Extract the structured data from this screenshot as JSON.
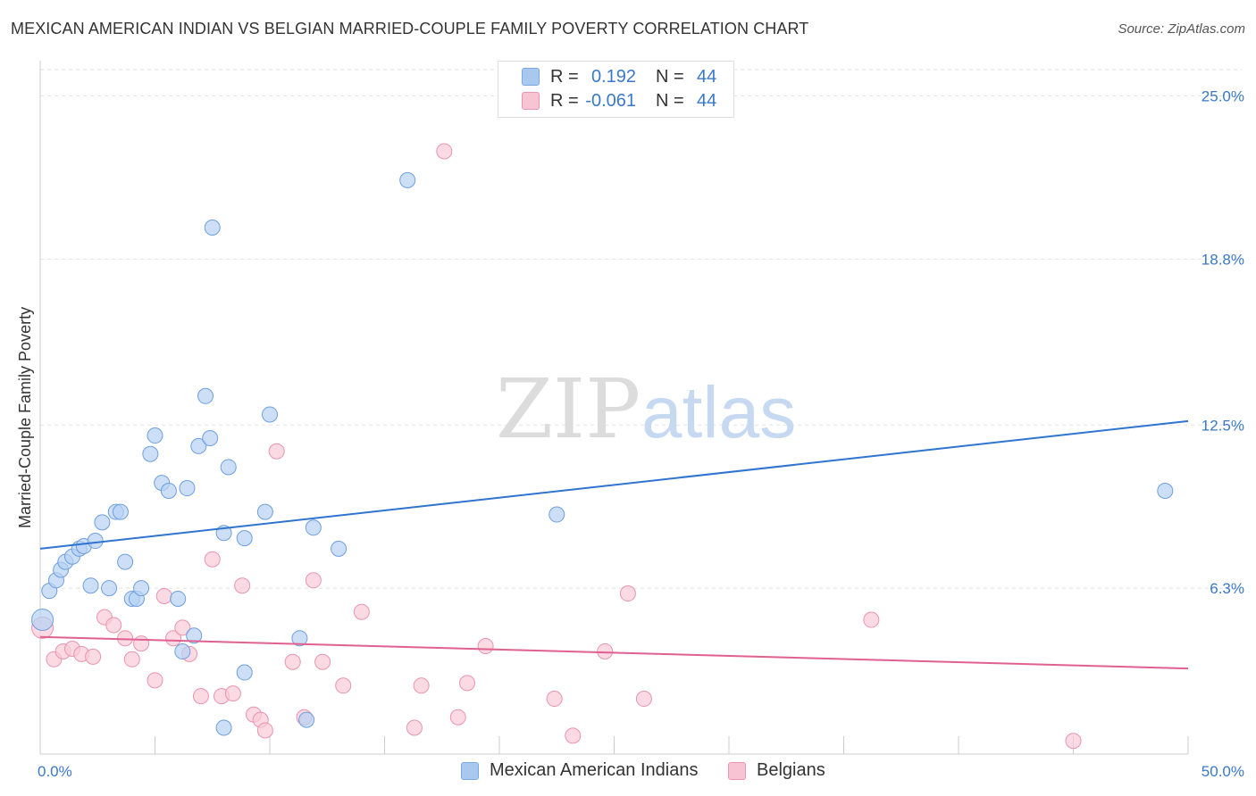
{
  "title": "MEXICAN AMERICAN INDIAN VS BELGIAN MARRIED-COUPLE FAMILY POVERTY CORRELATION CHART",
  "source": "Source: ZipAtlas.com",
  "watermark": {
    "zip": "ZIP",
    "atlas": "atlas"
  },
  "legend": {
    "rows": [
      {
        "r_label": "R =",
        "r_value": "0.192",
        "n_label": "N =",
        "n_value": "44",
        "color": "#a9c8f0",
        "border": "#7aa7e0"
      },
      {
        "r_label": "R =",
        "r_value": "-0.061",
        "n_label": "N =",
        "n_value": "44",
        "color": "#f8c3d3",
        "border": "#e994b0"
      }
    ]
  },
  "bottom_legend": {
    "items": [
      {
        "label": "Mexican American Indians",
        "color": "#a9c8f0",
        "border": "#7aa7e0"
      },
      {
        "label": "Belgians",
        "color": "#f8c3d3",
        "border": "#e994b0"
      }
    ]
  },
  "chart_data": {
    "type": "scatter",
    "xlabel": "",
    "ylabel": "Married-Couple Family Poverty",
    "xlim": [
      0,
      50
    ],
    "ylim": [
      0,
      26
    ],
    "x_tick_labels": [
      "0.0%",
      "50.0%"
    ],
    "y_ticks": [
      6.3,
      12.5,
      18.8,
      25.0
    ],
    "y_tick_labels": [
      "6.3%",
      "12.5%",
      "18.8%",
      "25.0%"
    ],
    "grid": "horizontal dashed",
    "series": [
      {
        "name": "Mexican American Indians",
        "color": "#6f9fe0",
        "fill": "#b7d1f3",
        "points": [
          [
            0.1,
            5.1
          ],
          [
            0.4,
            6.2
          ],
          [
            0.7,
            6.6
          ],
          [
            0.9,
            7.0
          ],
          [
            1.1,
            7.3
          ],
          [
            1.4,
            7.5
          ],
          [
            1.7,
            7.8
          ],
          [
            1.9,
            7.9
          ],
          [
            2.4,
            8.1
          ],
          [
            2.7,
            8.8
          ],
          [
            3.3,
            9.2
          ],
          [
            3.5,
            9.2
          ],
          [
            2.2,
            6.4
          ],
          [
            3.0,
            6.3
          ],
          [
            3.7,
            7.3
          ],
          [
            4.0,
            5.9
          ],
          [
            4.2,
            5.9
          ],
          [
            4.4,
            6.3
          ],
          [
            4.8,
            11.4
          ],
          [
            5.0,
            12.1
          ],
          [
            5.3,
            10.3
          ],
          [
            5.6,
            10.0
          ],
          [
            6.0,
            5.9
          ],
          [
            6.2,
            3.9
          ],
          [
            6.4,
            10.1
          ],
          [
            6.7,
            4.5
          ],
          [
            6.9,
            11.7
          ],
          [
            7.2,
            13.6
          ],
          [
            7.4,
            12.0
          ],
          [
            7.5,
            20.0
          ],
          [
            8.0,
            8.4
          ],
          [
            8.2,
            10.9
          ],
          [
            8.0,
            1.0
          ],
          [
            8.9,
            8.2
          ],
          [
            8.9,
            3.1
          ],
          [
            9.8,
            9.2
          ],
          [
            10.0,
            12.9
          ],
          [
            11.3,
            4.4
          ],
          [
            11.6,
            1.3
          ],
          [
            11.9,
            8.6
          ],
          [
            13.0,
            7.8
          ],
          [
            16.0,
            21.8
          ],
          [
            22.5,
            9.1
          ],
          [
            49.0,
            10.0
          ]
        ]
      },
      {
        "name": "Belgians",
        "color": "#e994b0",
        "fill": "#f9cbd9",
        "points": [
          [
            0.1,
            4.8
          ],
          [
            0.6,
            3.6
          ],
          [
            1.0,
            3.9
          ],
          [
            1.4,
            4.0
          ],
          [
            1.8,
            3.8
          ],
          [
            2.3,
            3.7
          ],
          [
            2.8,
            5.2
          ],
          [
            3.2,
            4.9
          ],
          [
            3.7,
            4.4
          ],
          [
            4.0,
            3.6
          ],
          [
            4.4,
            4.2
          ],
          [
            5.0,
            2.8
          ],
          [
            5.4,
            6.0
          ],
          [
            5.8,
            4.4
          ],
          [
            6.2,
            4.8
          ],
          [
            6.5,
            3.8
          ],
          [
            7.0,
            2.2
          ],
          [
            7.5,
            7.4
          ],
          [
            7.9,
            2.2
          ],
          [
            8.4,
            2.3
          ],
          [
            8.8,
            6.4
          ],
          [
            9.3,
            1.5
          ],
          [
            9.6,
            1.3
          ],
          [
            9.8,
            0.9
          ],
          [
            10.3,
            11.5
          ],
          [
            11.0,
            3.5
          ],
          [
            11.5,
            1.4
          ],
          [
            11.9,
            6.6
          ],
          [
            12.3,
            3.5
          ],
          [
            13.2,
            2.6
          ],
          [
            14.0,
            5.4
          ],
          [
            16.3,
            1.0
          ],
          [
            16.6,
            2.6
          ],
          [
            18.2,
            1.4
          ],
          [
            18.6,
            2.7
          ],
          [
            19.4,
            4.1
          ],
          [
            22.4,
            2.1
          ],
          [
            23.2,
            0.7
          ],
          [
            24.6,
            3.9
          ],
          [
            25.6,
            6.1
          ],
          [
            26.3,
            2.1
          ],
          [
            36.2,
            5.1
          ],
          [
            45.0,
            0.5
          ],
          [
            17.6,
            22.9
          ]
        ]
      }
    ],
    "trendlines": [
      {
        "series": "Mexican American Indians",
        "color": "#2f74d0",
        "x": [
          0,
          50
        ],
        "y": [
          7.8,
          12.65
        ]
      },
      {
        "series": "Belgians",
        "color": "#e0608f",
        "x": [
          0,
          50
        ],
        "y": [
          4.45,
          3.25
        ]
      }
    ]
  }
}
